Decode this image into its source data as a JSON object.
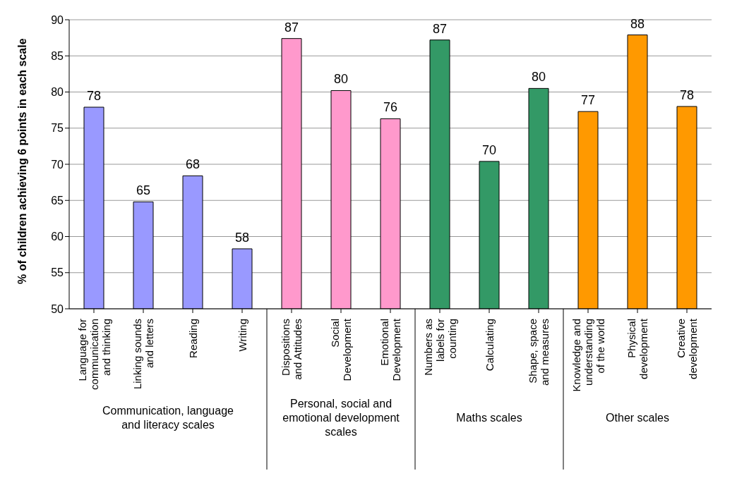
{
  "chart_data": {
    "type": "bar",
    "ylabel": "% of children achieving 6 points in each scale",
    "categories": [
      "Language for communication and thinking",
      "Linking sounds and letters",
      "Reading",
      "Writing",
      "Dispositions and Attitudes",
      "Social Development",
      "Emotional Development",
      "Numbers as labels for counting",
      "Calculating",
      "Shape, space and measures",
      "Knowledge and understanding of the world",
      "Physical development",
      "Creative development"
    ],
    "values": [
      77.9,
      64.8,
      68.4,
      58.3,
      87.4,
      80.2,
      76.3,
      87.2,
      70.4,
      80.5,
      77.3,
      87.9,
      78.0
    ],
    "value_labels": [
      "78",
      "65",
      "68",
      "58",
      "87",
      "80",
      "76",
      "87",
      "70",
      "80",
      "77",
      "88",
      "78"
    ],
    "colors": [
      "#9999ff",
      "#9999ff",
      "#9999ff",
      "#9999ff",
      "#ff99cc",
      "#ff99cc",
      "#ff99cc",
      "#339966",
      "#339966",
      "#339966",
      "#ff9900",
      "#ff9900",
      "#ff9900"
    ],
    "ylim": [
      50,
      90
    ],
    "yticks": [
      50,
      55,
      60,
      65,
      70,
      75,
      80,
      85,
      90
    ],
    "grid": "y",
    "annotations": [
      "Communication, language and literacy scales",
      "Personal, social and emotional development scales",
      "Maths  scales",
      "Other scales"
    ]
  }
}
